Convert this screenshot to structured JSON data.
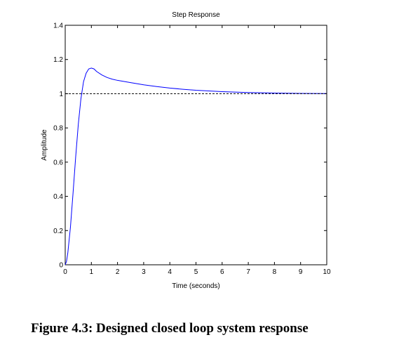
{
  "chart_data": {
    "type": "line",
    "title": "Step Response",
    "xlabel": "Time (seconds)",
    "ylabel": "Amplitude",
    "xlim": [
      0,
      10
    ],
    "ylim": [
      0,
      1.4
    ],
    "xticks": [
      0,
      1,
      2,
      3,
      4,
      5,
      6,
      7,
      8,
      9,
      10
    ],
    "xtick_labels": [
      "0",
      "1",
      "2",
      "3",
      "4",
      "5",
      "6",
      "7",
      "8",
      "9",
      "10"
    ],
    "yticks": [
      0,
      0.2,
      0.4,
      0.6,
      0.8,
      1,
      1.2,
      1.4
    ],
    "ytick_labels": [
      "0",
      "0.2",
      "0.4",
      "0.6",
      "0.8",
      "1",
      "1.2",
      "1.4"
    ],
    "grid": false,
    "series": [
      {
        "color": "#0000ff",
        "style": "solid",
        "x": [
          0,
          0.05,
          0.1,
          0.2,
          0.3,
          0.4,
          0.5,
          0.6,
          0.7,
          0.8,
          0.9,
          1.0,
          1.1,
          1.2,
          1.4,
          1.6,
          1.8,
          2.0,
          2.5,
          3.0,
          3.5,
          4.0,
          4.5,
          5.0,
          6.0,
          7.0,
          8.0,
          9.0,
          10.0
        ],
        "y": [
          0,
          0.02,
          0.07,
          0.22,
          0.42,
          0.63,
          0.82,
          0.97,
          1.07,
          1.12,
          1.145,
          1.15,
          1.145,
          1.13,
          1.11,
          1.095,
          1.085,
          1.078,
          1.065,
          1.052,
          1.042,
          1.033,
          1.026,
          1.02,
          1.012,
          1.007,
          1.004,
          1.002,
          1.001
        ]
      },
      {
        "color": "#000000",
        "style": "dashed",
        "x": [
          0,
          10
        ],
        "y": [
          1,
          1
        ]
      }
    ]
  },
  "caption": "Figure 4.3: Designed closed loop system response"
}
